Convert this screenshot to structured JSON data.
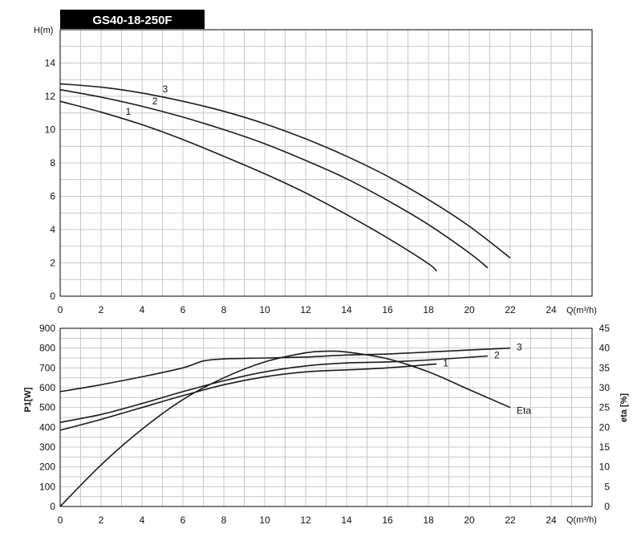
{
  "chart_data": [
    {
      "type": "line",
      "title": "GS40-18-250F",
      "ylabel": "H(m)",
      "xlabel": "Q(m³/h)",
      "xlim": [
        0,
        26
      ],
      "ylim": [
        0,
        16
      ],
      "x_ticks": [
        0,
        2,
        4,
        6,
        8,
        10,
        12,
        14,
        16,
        18,
        20,
        22,
        24
      ],
      "y_ticks": [
        0,
        2,
        4,
        6,
        8,
        10,
        12,
        14
      ],
      "grid": true,
      "series": [
        {
          "name": "1",
          "x": [
            0,
            2,
            4,
            6,
            8,
            10,
            12,
            14,
            16,
            18,
            18.4
          ],
          "y": [
            11.7,
            11.05,
            10.3,
            9.4,
            8.4,
            7.35,
            6.2,
            4.9,
            3.5,
            1.95,
            1.5
          ]
        },
        {
          "name": "2",
          "x": [
            0,
            2,
            4,
            6,
            8,
            10,
            12,
            14,
            16,
            18,
            20,
            20.9
          ],
          "y": [
            12.4,
            11.95,
            11.4,
            10.75,
            10.0,
            9.15,
            8.15,
            7.05,
            5.75,
            4.3,
            2.6,
            1.7
          ]
        },
        {
          "name": "3",
          "x": [
            0,
            2,
            4,
            6,
            8,
            10,
            12,
            14,
            16,
            18,
            20,
            22
          ],
          "y": [
            12.75,
            12.55,
            12.2,
            11.7,
            11.1,
            10.35,
            9.45,
            8.4,
            7.2,
            5.8,
            4.2,
            2.3
          ]
        }
      ]
    },
    {
      "type": "line",
      "ylabel": "P1[W]",
      "y2label": "eta [%]",
      "xlabel": "Q(m³/h)",
      "xlim": [
        0,
        26
      ],
      "ylim": [
        0,
        900
      ],
      "y2lim": [
        0,
        45
      ],
      "x_ticks": [
        0,
        2,
        4,
        6,
        8,
        10,
        12,
        14,
        16,
        18,
        20,
        22,
        24
      ],
      "y_ticks": [
        0,
        100,
        200,
        300,
        400,
        500,
        600,
        700,
        800,
        900
      ],
      "y2_ticks": [
        0,
        5,
        10,
        15,
        20,
        25,
        30,
        35,
        40,
        45
      ],
      "grid": true,
      "series": [
        {
          "name": "1",
          "axis": "left",
          "x": [
            0,
            2,
            4,
            6,
            8,
            10,
            12,
            14,
            16,
            18.4
          ],
          "y": [
            385,
            440,
            500,
            560,
            615,
            655,
            680,
            690,
            700,
            720
          ]
        },
        {
          "name": "2",
          "axis": "left",
          "x": [
            0,
            2,
            4,
            6,
            8,
            10,
            12,
            14,
            16,
            18,
            20.9
          ],
          "y": [
            425,
            465,
            520,
            580,
            635,
            680,
            710,
            725,
            730,
            740,
            760
          ]
        },
        {
          "name": "3",
          "axis": "left",
          "x": [
            0,
            2,
            4,
            6,
            7,
            8,
            10,
            12,
            14,
            16,
            18,
            20,
            22
          ],
          "y": [
            580,
            615,
            655,
            700,
            735,
            745,
            750,
            755,
            765,
            770,
            780,
            790,
            800
          ]
        },
        {
          "name": "Eta",
          "axis": "right",
          "x": [
            0,
            2,
            4,
            6,
            8,
            10,
            12,
            13,
            14,
            16,
            18,
            20,
            22
          ],
          "y": [
            0,
            10.5,
            19.5,
            27,
            32.5,
            36.5,
            38.8,
            39.2,
            39,
            37.3,
            34,
            29.5,
            25
          ]
        }
      ]
    }
  ]
}
